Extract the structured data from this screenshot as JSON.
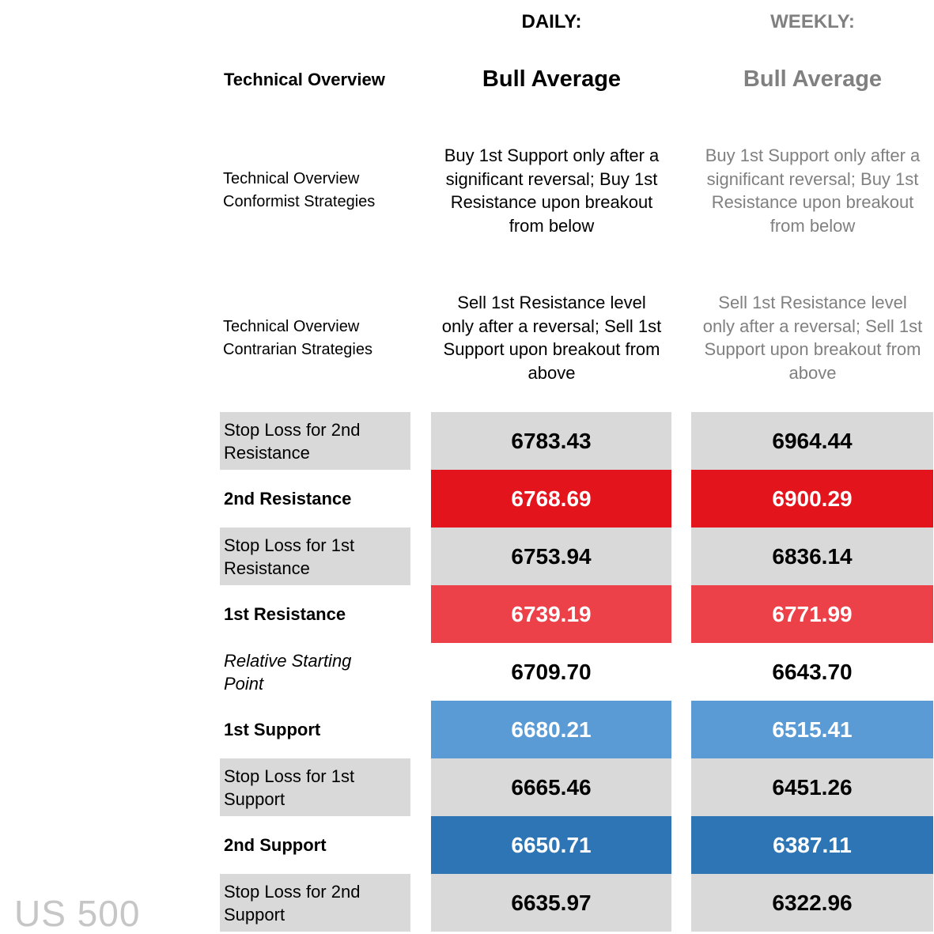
{
  "headers": {
    "daily": "DAILY:",
    "weekly": "WEEKLY:"
  },
  "overview": {
    "label": "Technical Overview",
    "daily": "Bull Average",
    "weekly": "Bull Average"
  },
  "conformist": {
    "label_line1": "Technical Overview",
    "label_line2": "Conformist Strategies",
    "daily_lines": [
      "Buy 1st Support only after a",
      "significant reversal; Buy 1st",
      "Resistance upon breakout",
      "from below"
    ],
    "weekly_lines": [
      "Buy 1st Support only after a",
      "significant reversal; Buy 1st",
      "Resistance upon breakout",
      "from below"
    ]
  },
  "contrarian": {
    "label_line1": "Technical Overview",
    "label_line2": "Contrarian Strategies",
    "daily_lines": [
      "Sell 1st Resistance level",
      "only after a reversal; Sell 1st",
      "Support upon breakout from",
      "above"
    ],
    "weekly_lines": [
      "Sell 1st Resistance level",
      "only after a reversal; Sell 1st",
      "Support upon breakout from",
      "above"
    ]
  },
  "levels": [
    {
      "label_line1": "Stop Loss for 2nd",
      "label_line2": "Resistance",
      "daily": "6783.43",
      "weekly": "6964.44",
      "color": "#d9d9d9",
      "text_color": "#000000"
    },
    {
      "label_line1": "2nd Resistance",
      "label_line2": "",
      "daily": "6768.69",
      "weekly": "6900.29",
      "color": "#e3141c",
      "text_color": "#ffffff"
    },
    {
      "label_line1": "Stop Loss for 1st",
      "label_line2": "Resistance",
      "daily": "6753.94",
      "weekly": "6836.14",
      "color": "#d9d9d9",
      "text_color": "#000000"
    },
    {
      "label_line1": "1st Resistance",
      "label_line2": "",
      "daily": "6739.19",
      "weekly": "6771.99",
      "color": "#ec4148",
      "text_color": "#ffffff"
    },
    {
      "label_line1": "Relative Starting",
      "label_line2": "Point",
      "daily": "6709.70",
      "weekly": "6643.70",
      "color": "#ffffff",
      "text_color": "#000000"
    },
    {
      "label_line1": "1st Support",
      "label_line2": "",
      "daily": "6680.21",
      "weekly": "6515.41",
      "color": "#5b9bd5",
      "text_color": "#ffffff"
    },
    {
      "label_line1": "Stop Loss for 1st",
      "label_line2": "Support",
      "daily": "6665.46",
      "weekly": "6451.26",
      "color": "#d9d9d9",
      "text_color": "#000000"
    },
    {
      "label_line1": "2nd Support",
      "label_line2": "",
      "daily": "6650.71",
      "weekly": "6387.11",
      "color": "#2e75b6",
      "text_color": "#ffffff"
    },
    {
      "label_line1": "Stop Loss for 2nd",
      "label_line2": "Support",
      "daily": "6635.97",
      "weekly": "6322.96",
      "color": "#d9d9d9",
      "text_color": "#000000"
    }
  ],
  "watermark": "US 500"
}
